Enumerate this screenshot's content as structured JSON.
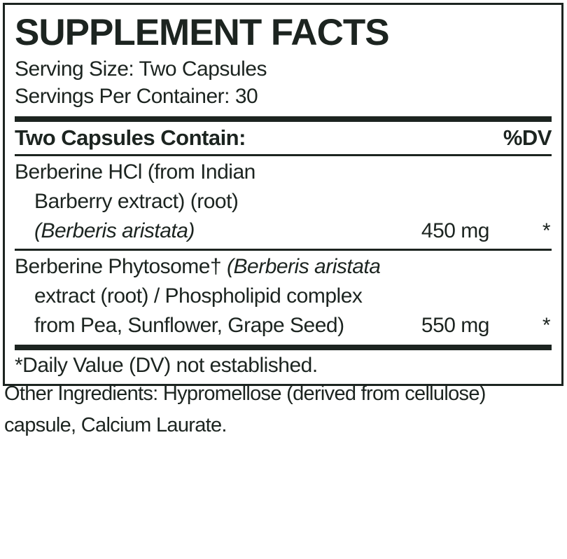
{
  "colors": {
    "ink": "#1c2420",
    "background": "#ffffff"
  },
  "panel": {
    "title": "SUPPLEMENT FACTS",
    "serving_size": "Serving Size: Two Capsules",
    "servings_per_container": "Servings Per Container: 30",
    "columns": {
      "contains_label": "Two Capsules Contain:",
      "dv_label": "%DV"
    },
    "ingredients": [
      {
        "lines": [
          [
            {
              "t": "Berberine HCl (from Indian"
            }
          ],
          [
            {
              "t": "Barberry extract) (root)"
            }
          ],
          [
            {
              "t": "(Berberis aristata)",
              "i": true
            }
          ]
        ],
        "amount": "450 mg",
        "dv": "*"
      },
      {
        "lines": [
          [
            {
              "t": "Berberine Phytosome† "
            },
            {
              "t": "(Berberis aristata",
              "i": true
            }
          ],
          [
            {
              "t": "extract (root) / Phospholipid complex"
            }
          ],
          [
            {
              "t": "from Pea, Sunflower, Grape Seed)"
            }
          ]
        ],
        "amount": "550 mg",
        "dv": "*"
      }
    ],
    "footnote": "*Daily Value (DV) not established."
  },
  "other_ingredients": {
    "lines": [
      "Other Ingredients: Hypromellose (derived from cellulose)",
      "capsule, Calcium Laurate."
    ]
  }
}
